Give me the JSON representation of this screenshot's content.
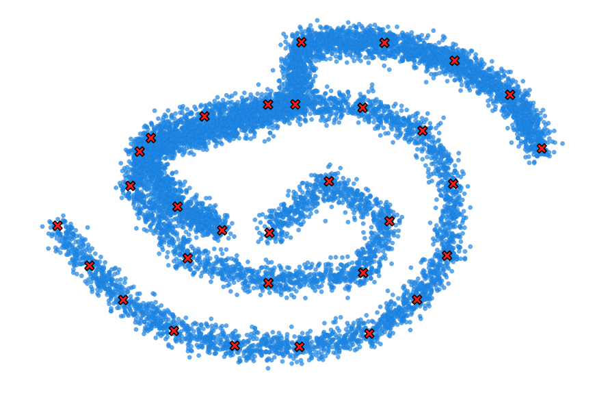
{
  "chart_data": {
    "type": "scatter",
    "title": "",
    "xlabel": "",
    "ylabel": "",
    "axes_visible": false,
    "grid": false,
    "legend": "none",
    "xlim": [
      -1.0,
      1.0
    ],
    "ylim": [
      -1.0,
      1.0
    ],
    "colors": {
      "point_fill": "#1e88e5",
      "point_edge": "#1565c0",
      "marker_fill": "#ff1a1a",
      "marker_edge": "#000000"
    },
    "series": [
      {
        "kind": "sampled-cloud",
        "marker": "circle",
        "point_count": 10000,
        "description_kind": "double spiral point cloud"
      },
      {
        "kind": "highlighted-points",
        "marker": "x",
        "points": [
          [
            -0.123,
            -0.167
          ],
          [
            0.089,
            0.112
          ],
          [
            0.305,
            -0.104
          ],
          [
            0.211,
            -0.383
          ],
          [
            -0.127,
            -0.438
          ],
          [
            -0.415,
            -0.304
          ],
          [
            -0.619,
            0.087
          ],
          [
            -0.546,
            0.346
          ],
          [
            -0.355,
            0.463
          ],
          [
            -0.128,
            0.527
          ],
          [
            0.209,
            0.51
          ],
          [
            0.423,
            0.385
          ],
          [
            0.532,
            0.098
          ],
          [
            0.51,
            -0.29
          ],
          [
            0.403,
            -0.528
          ],
          [
            0.233,
            -0.712
          ],
          [
            -0.016,
            -0.783
          ],
          [
            -0.247,
            -0.777
          ],
          [
            -0.464,
            -0.697
          ],
          [
            -0.645,
            -0.53
          ],
          [
            -0.765,
            -0.345
          ],
          [
            -0.879,
            -0.128
          ],
          [
            -0.586,
            0.273
          ],
          [
            -0.451,
            -0.025
          ],
          [
            -0.292,
            -0.153
          ],
          [
            -0.031,
            0.528
          ],
          [
            -0.009,
            0.864
          ],
          [
            0.287,
            0.861
          ],
          [
            0.537,
            0.764
          ],
          [
            0.735,
            0.58
          ],
          [
            0.848,
            0.29
          ]
        ]
      }
    ]
  }
}
